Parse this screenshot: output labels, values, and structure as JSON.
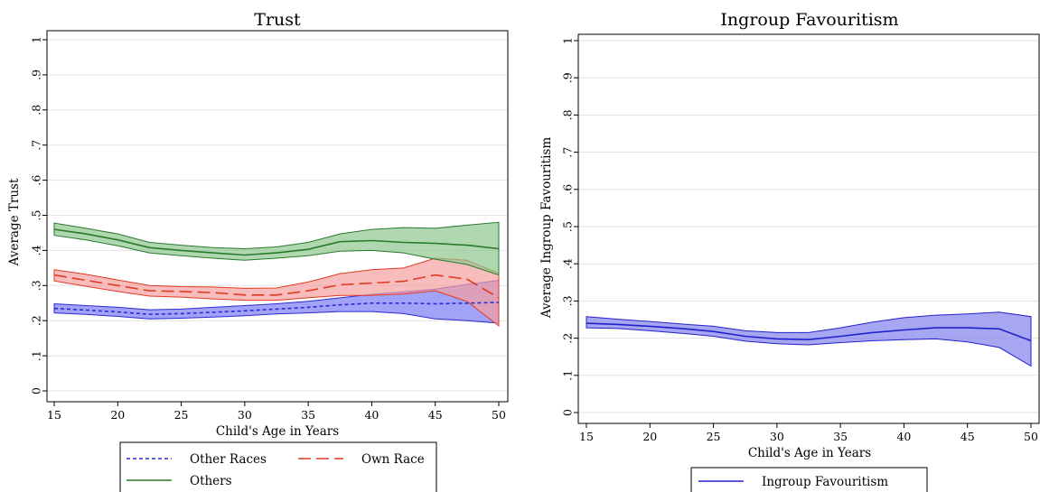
{
  "chart_data": [
    {
      "type": "line",
      "title": "Trust",
      "xlabel": "Child's Age in Years",
      "ylabel": "Average Trust",
      "xlim": [
        15,
        50
      ],
      "ylim": [
        0,
        1
      ],
      "xticks": [
        "15",
        "20",
        "25",
        "30",
        "35",
        "40",
        "45",
        "50"
      ],
      "yticks": [
        "0",
        ".1",
        ".2",
        ".3",
        ".4",
        ".5",
        ".6",
        ".7",
        ".8",
        ".9",
        "1"
      ],
      "grid": true,
      "legend_position": "bottom",
      "x": [
        15,
        17.5,
        20,
        22.5,
        25,
        27.5,
        30,
        32.5,
        35,
        37.5,
        40,
        42.5,
        45,
        47.5,
        50
      ],
      "series": [
        {
          "name": "Other Races",
          "color": "#2b2bd6",
          "band_color": "#7b7bf5",
          "line_style": "short-dash",
          "values": [
            0.235,
            0.23,
            0.225,
            0.218,
            0.22,
            0.224,
            0.228,
            0.233,
            0.238,
            0.245,
            0.25,
            0.25,
            0.248,
            0.25,
            0.252
          ],
          "lower": [
            0.222,
            0.218,
            0.212,
            0.205,
            0.207,
            0.21,
            0.214,
            0.219,
            0.222,
            0.226,
            0.226,
            0.22,
            0.205,
            0.2,
            0.193
          ],
          "upper": [
            0.248,
            0.243,
            0.238,
            0.231,
            0.233,
            0.238,
            0.243,
            0.248,
            0.255,
            0.265,
            0.275,
            0.282,
            0.29,
            0.303,
            0.315
          ]
        },
        {
          "name": "Own Race",
          "color": "#e03b24",
          "band_color": "#f7a0a0",
          "line_style": "long-dash",
          "values": [
            0.33,
            0.315,
            0.3,
            0.285,
            0.283,
            0.28,
            0.273,
            0.273,
            0.285,
            0.302,
            0.307,
            0.312,
            0.33,
            0.318,
            0.265
          ],
          "lower": [
            0.313,
            0.298,
            0.283,
            0.27,
            0.267,
            0.262,
            0.258,
            0.258,
            0.265,
            0.272,
            0.272,
            0.276,
            0.285,
            0.255,
            0.185
          ],
          "upper": [
            0.345,
            0.332,
            0.316,
            0.3,
            0.297,
            0.296,
            0.292,
            0.293,
            0.31,
            0.334,
            0.345,
            0.35,
            0.378,
            0.372,
            0.335
          ]
        },
        {
          "name": "Others",
          "color": "#2a7a2a",
          "band_color": "#8ec88e",
          "line_style": "solid",
          "values": [
            0.46,
            0.447,
            0.43,
            0.408,
            0.4,
            0.393,
            0.387,
            0.393,
            0.403,
            0.425,
            0.428,
            0.423,
            0.42,
            0.415,
            0.405
          ],
          "lower": [
            0.443,
            0.43,
            0.413,
            0.393,
            0.385,
            0.378,
            0.372,
            0.378,
            0.385,
            0.398,
            0.4,
            0.393,
            0.375,
            0.36,
            0.33
          ],
          "upper": [
            0.478,
            0.463,
            0.447,
            0.423,
            0.415,
            0.408,
            0.405,
            0.41,
            0.423,
            0.447,
            0.46,
            0.465,
            0.463,
            0.472,
            0.48
          ]
        }
      ]
    },
    {
      "type": "line",
      "title": "Ingroup Favouritism",
      "xlabel": "Child's Age in Years",
      "ylabel": "Average Ingroup Favouritism",
      "xlim": [
        15,
        50
      ],
      "ylim": [
        0,
        1
      ],
      "xticks": [
        "15",
        "20",
        "25",
        "30",
        "35",
        "40",
        "45",
        "50"
      ],
      "yticks": [
        "0",
        ".1",
        ".2",
        ".3",
        ".4",
        ".5",
        ".6",
        ".7",
        ".8",
        ".9",
        "1"
      ],
      "grid": true,
      "legend_position": "bottom",
      "x": [
        15,
        17.5,
        20,
        22.5,
        25,
        27.5,
        30,
        32.5,
        35,
        37.5,
        40,
        42.5,
        45,
        47.5,
        50
      ],
      "series": [
        {
          "name": "Ingroup Favouritism",
          "color": "#2222cc",
          "band_color": "#8080ee",
          "line_style": "solid",
          "values": [
            0.24,
            0.237,
            0.232,
            0.226,
            0.218,
            0.205,
            0.198,
            0.196,
            0.205,
            0.215,
            0.222,
            0.228,
            0.228,
            0.225,
            0.193
          ],
          "lower": [
            0.228,
            0.226,
            0.22,
            0.213,
            0.205,
            0.192,
            0.185,
            0.182,
            0.188,
            0.193,
            0.196,
            0.198,
            0.19,
            0.175,
            0.125
          ],
          "upper": [
            0.258,
            0.251,
            0.245,
            0.238,
            0.232,
            0.22,
            0.215,
            0.215,
            0.228,
            0.243,
            0.255,
            0.262,
            0.265,
            0.27,
            0.258
          ]
        }
      ]
    }
  ]
}
